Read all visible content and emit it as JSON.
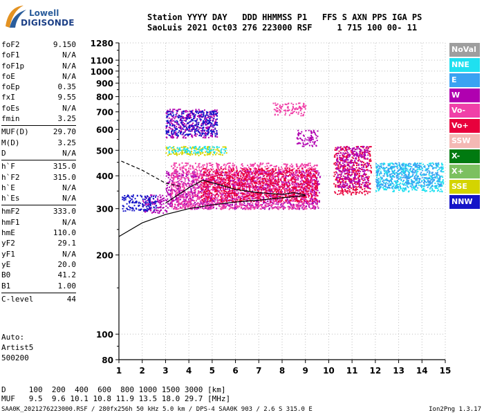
{
  "logo": {
    "line1": "Lowell",
    "line2": "DIGISONDE"
  },
  "header": {
    "line1": "Station YYYY DAY   DDD HHMMSS P1   FFS S AXN PPS IGA PS",
    "line2": "SaoLuis 2021 Oct03 276 223000 RSF     1 715 100 00- 11"
  },
  "params": [
    {
      "group": [
        {
          "label": "foF2",
          "value": "9.150"
        },
        {
          "label": "foF1",
          "value": "N/A"
        },
        {
          "label": "foF1p",
          "value": "N/A"
        },
        {
          "label": "foE",
          "value": "N/A"
        },
        {
          "label": "foEp",
          "value": "0.35"
        },
        {
          "label": "fxI",
          "value": "9.55"
        },
        {
          "label": "foEs",
          "value": "N/A"
        },
        {
          "label": "fmin",
          "value": "3.25"
        }
      ]
    },
    {
      "group": [
        {
          "label": "MUF(D)",
          "value": "29.70"
        },
        {
          "label": "M(D)",
          "value": "3.25"
        },
        {
          "label": "D",
          "value": "N/A"
        }
      ]
    },
    {
      "group": [
        {
          "label": "h`F",
          "value": "315.0"
        },
        {
          "label": "h`F2",
          "value": "315.0"
        },
        {
          "label": "h`E",
          "value": "N/A"
        },
        {
          "label": "h`Es",
          "value": "N/A"
        }
      ]
    },
    {
      "group": [
        {
          "label": "hmF2",
          "value": "333.0"
        },
        {
          "label": "hmF1",
          "value": "N/A"
        },
        {
          "label": "hmE",
          "value": "110.0"
        },
        {
          "label": "yF2",
          "value": "29.1"
        },
        {
          "label": "yF1",
          "value": "N/A"
        },
        {
          "label": "yE",
          "value": "20.0"
        },
        {
          "label": "B0",
          "value": "41.2"
        },
        {
          "label": "B1",
          "value": "1.00"
        }
      ]
    },
    {
      "group": [
        {
          "label": "C-level",
          "value": "44"
        }
      ]
    }
  ],
  "auto": {
    "line1": "Auto:",
    "line2": "Artist5",
    "line3": "500200"
  },
  "legend": [
    {
      "label": "NoVal",
      "color": "#9e9e9e"
    },
    {
      "label": "NNE",
      "color": "#1fe0f0"
    },
    {
      "label": "E",
      "color": "#3aa2f2"
    },
    {
      "label": "W",
      "color": "#b000b0"
    },
    {
      "label": "Vo-",
      "color": "#f040a8"
    },
    {
      "label": "Vo+",
      "color": "#e8003c"
    },
    {
      "label": "SSW",
      "color": "#f4b8b4"
    },
    {
      "label": "X-",
      "color": "#007a10"
    },
    {
      "label": "X+",
      "color": "#7cc060"
    },
    {
      "label": "SSE",
      "color": "#d4d400"
    },
    {
      "label": "NNW",
      "color": "#1414c8"
    }
  ],
  "muf_table": {
    "d_row": "D     100  200  400  600  800 1000 1500 3000 [km]",
    "muf_row": "MUF   9.5  9.6 10.1 10.8 11.9 13.5 18.0 29.7 [MHz]"
  },
  "footer": "SAA0K_2021276223000.RSF / 280fx256h 50 kHz 5.0 km / DPS-4 SAA0K 903 / 2.6 S 315.0 E",
  "footer_version": "Ion2Png 1.3.17",
  "chart_data": {
    "type": "scatter",
    "title": "",
    "xlabel": "",
    "ylabel": "",
    "xlim": [
      1,
      15
    ],
    "ylim": [
      80,
      1280
    ],
    "y_scale": "log",
    "xticks": [
      1,
      2,
      3,
      4,
      5,
      6,
      7,
      8,
      9,
      10,
      11,
      12,
      13,
      14,
      15
    ],
    "yticks": [
      80,
      100,
      200,
      300,
      400,
      500,
      600,
      700,
      800,
      900,
      1000,
      1100,
      1280
    ],
    "grid": true,
    "legend_position": "right",
    "echo_regions": [
      {
        "color": "W",
        "x": [
          2.0,
          3.1
        ],
        "y": [
          290,
          340
        ]
      },
      {
        "color": "NNW",
        "x": [
          1.1,
          2.6
        ],
        "y": [
          295,
          340
        ]
      },
      {
        "color": "W",
        "x": [
          3.0,
          9.6
        ],
        "y": [
          300,
          420
        ]
      },
      {
        "color": "Vo-",
        "x": [
          3.2,
          9.5
        ],
        "y": [
          300,
          450
        ]
      },
      {
        "color": "Vo+",
        "x": [
          4.5,
          9.5
        ],
        "y": [
          320,
          430
        ]
      },
      {
        "color": "NNE",
        "x": [
          12.0,
          14.9
        ],
        "y": [
          350,
          450
        ]
      },
      {
        "color": "E",
        "x": [
          12.0,
          14.8
        ],
        "y": [
          360,
          450
        ]
      },
      {
        "color": "Vo+",
        "x": [
          10.2,
          11.8
        ],
        "y": [
          340,
          520
        ]
      },
      {
        "color": "W",
        "x": [
          10.3,
          11.7
        ],
        "y": [
          360,
          520
        ]
      },
      {
        "color": "SSE",
        "x": [
          3.0,
          5.6
        ],
        "y": [
          480,
          520
        ]
      },
      {
        "color": "NNE",
        "x": [
          3.0,
          5.6
        ],
        "y": [
          490,
          520
        ]
      },
      {
        "color": "W",
        "x": [
          3.0,
          5.2
        ],
        "y": [
          560,
          720
        ]
      },
      {
        "color": "NNW",
        "x": [
          3.0,
          5.2
        ],
        "y": [
          570,
          710
        ]
      },
      {
        "color": "Vo-",
        "x": [
          7.6,
          9.0
        ],
        "y": [
          680,
          760
        ]
      },
      {
        "color": "W",
        "x": [
          8.6,
          9.5
        ],
        "y": [
          520,
          600
        ]
      }
    ],
    "traces": [
      {
        "name": "",
        "style": "solid",
        "x": [
          1.0,
          2.0,
          3.0,
          4.0,
          5.0,
          6.0,
          7.0,
          8.0,
          9.0
        ],
        "y": [
          235,
          265,
          285,
          300,
          310,
          318,
          323,
          330,
          336
        ]
      },
      {
        "name": "",
        "style": "dashed",
        "x": [
          1.1,
          2.0,
          3.0,
          3.6
        ],
        "y": [
          455,
          420,
          375,
          365
        ]
      },
      {
        "name": "",
        "style": "solid",
        "x": [
          3.0,
          4.0,
          4.6,
          5.3,
          6.0,
          7.0,
          8.0,
          8.5,
          9.0
        ],
        "y": [
          315,
          360,
          385,
          370,
          355,
          345,
          340,
          345,
          338
        ]
      }
    ]
  }
}
